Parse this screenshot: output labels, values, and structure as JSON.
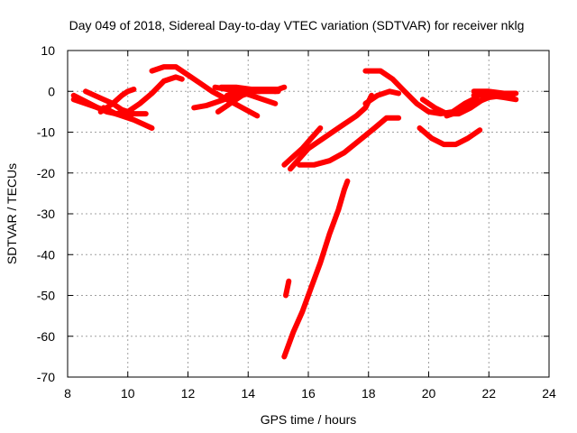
{
  "chart_data": {
    "type": "scatter",
    "title": "Day 049 of 2018, Sidereal Day-to-day VTEC variation (SDTVAR) for receiver nklg",
    "xlabel": "GPS time / hours",
    "ylabel": "SDTVAR / TECUs",
    "xlim": [
      8,
      24
    ],
    "ylim": [
      -70,
      10
    ],
    "x_ticks": [
      8,
      10,
      12,
      14,
      16,
      18,
      20,
      22,
      24
    ],
    "y_ticks": [
      10,
      0,
      -10,
      -20,
      -30,
      -40,
      -50,
      -60,
      -70
    ],
    "grid": true,
    "series_color": "#ff0000",
    "series": [
      {
        "name": "arc-1",
        "x": [
          8.2,
          8.6,
          9.0,
          9.4,
          9.8,
          10.2,
          10.5,
          10.8
        ],
        "y": [
          -2,
          -3,
          -4,
          -5,
          -6,
          -7,
          -8,
          -9
        ]
      },
      {
        "name": "arc-2",
        "x": [
          8.2,
          8.6,
          9.0,
          9.3,
          9.6,
          9.9,
          10.1
        ],
        "y": [
          -1,
          -2.5,
          -4,
          -5,
          -5.5,
          -6,
          -6
        ]
      },
      {
        "name": "arc-3",
        "x": [
          8.6,
          8.9,
          9.2,
          9.5,
          9.8,
          10.2,
          10.6
        ],
        "y": [
          0,
          -1,
          -2,
          -3,
          -4.5,
          -5.5,
          -5.5
        ]
      },
      {
        "name": "arc-4",
        "x": [
          9.1,
          9.5,
          9.8,
          10.0,
          10.2
        ],
        "y": [
          -5,
          -3,
          -1,
          0,
          0.5
        ]
      },
      {
        "name": "arc-5",
        "x": [
          9.2,
          9.6,
          10.0,
          10.4,
          10.8,
          11.2,
          11.6,
          11.8
        ],
        "y": [
          -4,
          -5.5,
          -5,
          -3,
          -0.5,
          2.5,
          3.5,
          3
        ]
      },
      {
        "name": "arc-6",
        "x": [
          10.8,
          11.2,
          11.6,
          12.0,
          12.4,
          12.8,
          13.3,
          13.8,
          14.3
        ],
        "y": [
          5,
          6,
          6,
          4,
          2,
          0,
          -2,
          -4,
          -6
        ]
      },
      {
        "name": "arc-7",
        "x": [
          12.2,
          12.6,
          13.0,
          13.4,
          13.8,
          14.1,
          14.4
        ],
        "y": [
          -4,
          -3.5,
          -2.5,
          -1.5,
          -0.5,
          0,
          0
        ]
      },
      {
        "name": "arc-8",
        "x": [
          12.9,
          13.3,
          13.7,
          14.1,
          14.5,
          14.9
        ],
        "y": [
          1,
          0.5,
          0,
          -1,
          -2,
          -3
        ]
      },
      {
        "name": "arc-9",
        "x": [
          13.0,
          13.4,
          13.8,
          14.2,
          14.6,
          15.0
        ],
        "y": [
          -5,
          -3,
          -1,
          0,
          0,
          0
        ]
      },
      {
        "name": "arc-10",
        "x": [
          13.3,
          13.7,
          14.1,
          14.5,
          15.0,
          15.2
        ],
        "y": [
          -1,
          0,
          0.5,
          0.5,
          0.5,
          1
        ]
      },
      {
        "name": "arc-11",
        "x": [
          13.1,
          13.6,
          14.1,
          14.6,
          14.9
        ],
        "y": [
          1,
          1,
          0.5,
          0.5,
          0
        ]
      },
      {
        "name": "arc-12",
        "x": [
          15.2,
          15.5,
          15.8,
          16.1,
          16.4
        ],
        "y": [
          -18,
          -16,
          -14,
          -11.5,
          -9
        ]
      },
      {
        "name": "arc-13",
        "x": [
          15.4,
          16.0,
          16.6,
          17.2,
          17.6,
          17.9,
          18.1
        ],
        "y": [
          -19,
          -14,
          -11,
          -8,
          -6,
          -4,
          -1
        ]
      },
      {
        "name": "arc-14",
        "x": [
          15.7,
          16.2,
          16.7,
          17.2,
          17.7,
          18.2,
          18.6,
          19.0
        ],
        "y": [
          -18,
          -18,
          -17,
          -15,
          -12,
          -9,
          -6.5,
          -6.5
        ]
      },
      {
        "name": "arc-15",
        "x": [
          17.9,
          18.4,
          18.8,
          19.2,
          19.6,
          20.0,
          20.4,
          20.8,
          21.2,
          21.6
        ],
        "y": [
          5,
          5,
          3,
          0,
          -3,
          -5,
          -5.5,
          -5,
          -3,
          -1.5
        ]
      },
      {
        "name": "arc-16",
        "x": [
          17.9,
          18.3,
          18.7,
          19.0
        ],
        "y": [
          -3,
          -1,
          0,
          -0.5
        ]
      },
      {
        "name": "arc-17",
        "x": [
          19.7,
          20.1,
          20.5,
          20.9,
          21.3,
          21.7
        ],
        "y": [
          -9,
          -11.5,
          -13,
          -13,
          -11.5,
          -9.5
        ]
      },
      {
        "name": "arc-18",
        "x": [
          19.8,
          20.2,
          20.6,
          21.0,
          21.4,
          21.8
        ],
        "y": [
          -2,
          -4,
          -5.5,
          -5.5,
          -4,
          -2
        ]
      },
      {
        "name": "arc-19",
        "x": [
          20.6,
          21.0,
          21.5,
          22.0,
          22.5,
          22.8
        ],
        "y": [
          -6,
          -5,
          -3,
          -1.5,
          -1,
          -1
        ]
      },
      {
        "name": "arc-20",
        "x": [
          21.5,
          22.0,
          22.5,
          22.9
        ],
        "y": [
          -1,
          -1,
          -1.5,
          -2
        ]
      },
      {
        "name": "arc-21",
        "x": [
          21.5,
          22.0,
          22.5,
          22.9
        ],
        "y": [
          0,
          0,
          -0.5,
          -0.5
        ]
      },
      {
        "name": "arc-22",
        "x": [
          15.2,
          15.5,
          15.8,
          16.1,
          16.4,
          16.7,
          17.0,
          17.2,
          17.3
        ],
        "y": [
          -65,
          -59,
          -54,
          -48,
          -42,
          -35,
          -29,
          -24,
          -22
        ]
      },
      {
        "name": "arc-23",
        "x": [
          15.25,
          15.35
        ],
        "y": [
          -50,
          -46.5
        ]
      }
    ]
  }
}
